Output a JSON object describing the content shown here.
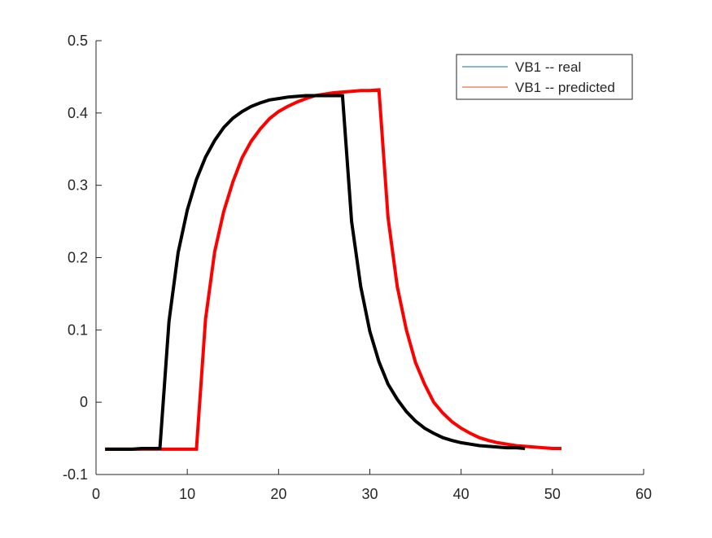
{
  "chart_data": {
    "type": "line",
    "title": "",
    "xlabel": "",
    "ylabel": "",
    "xlim": [
      0,
      60
    ],
    "ylim": [
      -0.1,
      0.5
    ],
    "x_ticks": [
      "0",
      "10",
      "20",
      "30",
      "40",
      "50",
      "60"
    ],
    "y_ticks": [
      "-0.1",
      "0",
      "0.1",
      "0.2",
      "0.3",
      "0.4",
      "0.5"
    ],
    "grid": false,
    "legend_position": "top-right",
    "legend": [
      {
        "label": "VB1 -- real",
        "color": "#0072BD"
      },
      {
        "label": "VB1 -- predicted",
        "color": "#D95319"
      }
    ],
    "series": [
      {
        "color": "#FF0000",
        "x": [
          1,
          2,
          3,
          4,
          5,
          6,
          7,
          8,
          9,
          10,
          11,
          12,
          13,
          14,
          15,
          16,
          17,
          18,
          19,
          20,
          21,
          22,
          23,
          24,
          25,
          26,
          27,
          28,
          29,
          30,
          31,
          32,
          33,
          34,
          35,
          36,
          37,
          38,
          39,
          40,
          41,
          42,
          43,
          44,
          45,
          46,
          47,
          48,
          49,
          50,
          51
        ],
        "y": [
          -0.065,
          -0.065,
          -0.065,
          -0.065,
          -0.065,
          -0.065,
          -0.065,
          -0.065,
          -0.065,
          -0.065,
          -0.065,
          0.115,
          0.208,
          0.264,
          0.305,
          0.338,
          0.361,
          0.378,
          0.392,
          0.402,
          0.409,
          0.415,
          0.42,
          0.424,
          0.426,
          0.428,
          0.429,
          0.43,
          0.431,
          0.431,
          0.432,
          0.255,
          0.16,
          0.1,
          0.055,
          0.025,
          0.0,
          -0.015,
          -0.027,
          -0.036,
          -0.043,
          -0.049,
          -0.053,
          -0.056,
          -0.058,
          -0.06,
          -0.061,
          -0.062,
          -0.063,
          -0.064,
          -0.064
        ]
      },
      {
        "color": "#000000",
        "x": [
          1,
          2,
          3,
          4,
          5,
          6,
          7,
          8,
          9,
          10,
          11,
          12,
          13,
          14,
          15,
          16,
          17,
          18,
          19,
          20,
          21,
          22,
          23,
          24,
          25,
          26,
          27,
          28,
          29,
          30,
          31,
          32,
          33,
          34,
          35,
          36,
          37,
          38,
          39,
          40,
          41,
          42,
          43,
          44,
          45,
          46,
          47
        ],
        "y": [
          -0.065,
          -0.065,
          -0.065,
          -0.065,
          -0.064,
          -0.064,
          -0.064,
          0.112,
          0.207,
          0.266,
          0.308,
          0.339,
          0.362,
          0.38,
          0.393,
          0.402,
          0.409,
          0.414,
          0.418,
          0.42,
          0.422,
          0.423,
          0.424,
          0.424,
          0.424,
          0.424,
          0.424,
          0.25,
          0.16,
          0.098,
          0.056,
          0.025,
          0.004,
          -0.013,
          -0.026,
          -0.036,
          -0.043,
          -0.049,
          -0.053,
          -0.056,
          -0.058,
          -0.06,
          -0.061,
          -0.062,
          -0.063,
          -0.063,
          -0.064
        ]
      }
    ]
  }
}
